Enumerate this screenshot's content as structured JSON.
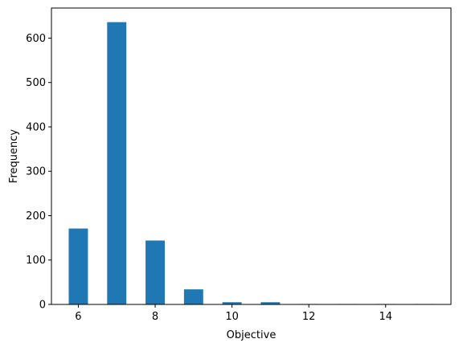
{
  "chart_data": {
    "type": "bar",
    "title": "",
    "xlabel": "Objective",
    "ylabel": "Frequency",
    "x": [
      6,
      7,
      8,
      9,
      10,
      11,
      12,
      13,
      14,
      15
    ],
    "values": [
      171,
      636,
      144,
      34,
      5,
      5,
      1,
      1,
      1,
      1
    ],
    "bar_width": 0.5,
    "xlim": [
      5.3,
      15.7
    ],
    "ylim": [
      0,
      667.8
    ],
    "xticks": [
      6,
      8,
      10,
      12,
      14
    ],
    "yticks": [
      0,
      100,
      200,
      300,
      400,
      500,
      600
    ],
    "grid": false,
    "colors": {
      "bar": "#1f77b4",
      "axes": "#000000",
      "background": "#ffffff"
    }
  }
}
